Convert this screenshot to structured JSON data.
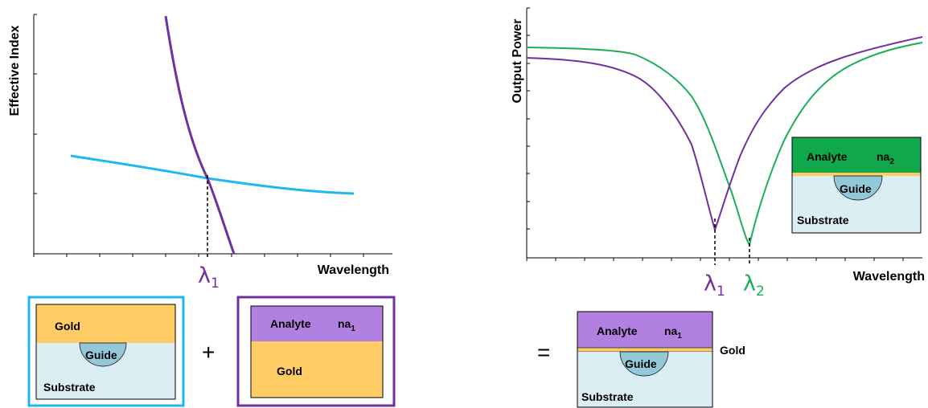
{
  "colors": {
    "purple": "#7030a0",
    "cyan": "#1fb8f0",
    "green": "#1aae5a",
    "gold": "#ffcc66",
    "analyte_purple": "#b180e0",
    "analyte_green": "#0fa84a",
    "substrate": "#dbeef3",
    "guide": "#93c8d8"
  },
  "left_plot": {
    "ylabel": "Effective Index",
    "xlabel": "Wavelength",
    "lambda": "λ",
    "lambda_sub": "1"
  },
  "right_plot": {
    "ylabel": "Output Power",
    "xlabel": "Wavelength",
    "lambda1": "λ",
    "lambda1_sub": "1",
    "lambda2": "λ",
    "lambda2_sub": "2"
  },
  "box_gold": {
    "gold": "Gold",
    "guide": "Guide",
    "substrate": "Substrate"
  },
  "box_analyte": {
    "analyte": "Analyte",
    "na": "na",
    "na_sub": "1",
    "gold": "Gold"
  },
  "ops": {
    "plus": "+",
    "equals": "="
  },
  "box_result": {
    "analyte": "Analyte",
    "na": "na",
    "na_sub": "1",
    "gold": "Gold",
    "guide": "Guide",
    "substrate": "Substrate"
  },
  "box_green": {
    "analyte": "Analyte",
    "na": "na",
    "na_sub": "2",
    "guide": "Guide",
    "substrate": "Substrate"
  }
}
